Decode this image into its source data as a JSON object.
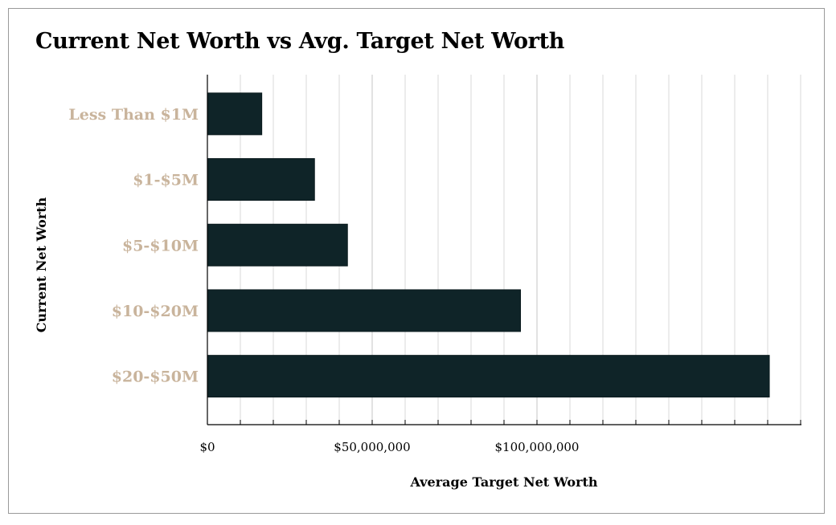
{
  "colors": {
    "bar": "#0f2428",
    "category_label": "#c9b49c",
    "grid": "#d9d9d9",
    "axis": "#000000"
  },
  "chart_data": {
    "type": "bar",
    "orientation": "horizontal",
    "title": "Current Net Worth vs Avg. Target Net Worth",
    "xlabel": "Average Target Net Worth",
    "ylabel": "Current Net Worth",
    "categories": [
      "Less Than $1M",
      "$1-$5M",
      "$5-$10M",
      "$10-$20M",
      "$20-$50M"
    ],
    "values": [
      16500000,
      32500000,
      42500000,
      95000000,
      170500000
    ],
    "xlim": [
      0,
      180000000
    ],
    "xticks": [
      0,
      50000000,
      100000000
    ],
    "xtick_labels": [
      "$0",
      "$50,000,000",
      "$100,000,000"
    ],
    "minor_tick_step": 10000000,
    "grid": true,
    "legend": "none"
  }
}
